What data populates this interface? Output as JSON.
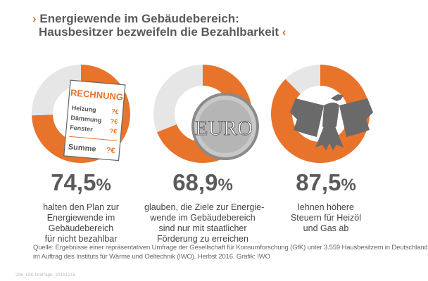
{
  "title": {
    "line1": "Energiewende im Gebäudebereich:",
    "line2": "Hausbesitzer bezweifeln die Bezahlbarkeit",
    "open": "›",
    "close": "‹"
  },
  "colors": {
    "accent": "#e8732a",
    "rest": "#e6e6e6"
  },
  "chart_data": {
    "type": "pie",
    "charts": [
      {
        "value": 74.5,
        "label": "74,5",
        "unit": "%",
        "description": [
          "halten den Plan zur",
          "Energiewende im",
          "Gebäudebereich",
          "für nicht bezahlbar"
        ],
        "icon": "invoice-icon"
      },
      {
        "value": 68.9,
        "label": "68,9",
        "unit": "%",
        "description": [
          "glauben, die Ziele zur Energie-",
          "wende im Gebäudebereich",
          "sind nur mit staatlicher",
          "Förderung zu erreichen"
        ],
        "icon": "euro-coin-icon"
      },
      {
        "value": 87.5,
        "label": "87,5",
        "unit": "%",
        "description": [
          "lehnen höhere",
          "Steuern für Heizöl",
          "und Gas ab"
        ],
        "icon": "federal-eagle-icon"
      }
    ]
  },
  "invoice": {
    "title": "RECHNUNG",
    "rows": [
      {
        "label": "Heizung",
        "value": "?€"
      },
      {
        "label": "Dämmung",
        "value": "?€"
      },
      {
        "label": "Fenster",
        "value": "?€"
      }
    ],
    "total_label": "Summe",
    "total_value": "?€"
  },
  "coin": {
    "text": "EURO"
  },
  "source": {
    "line1": "Quelle: Ergebnisse einer repräsentativen Umfrage der Gesellschaft für Konsumforschung (GfK) unter 3.559 Hausbesitzern in Deutschland",
    "line2": "im Auftrag des Instituts für Wärme und Oeltechnik (IWO). Herbst 2016. Grafik: IWO"
  },
  "code": "236_GfK-Umfrage_20161215"
}
